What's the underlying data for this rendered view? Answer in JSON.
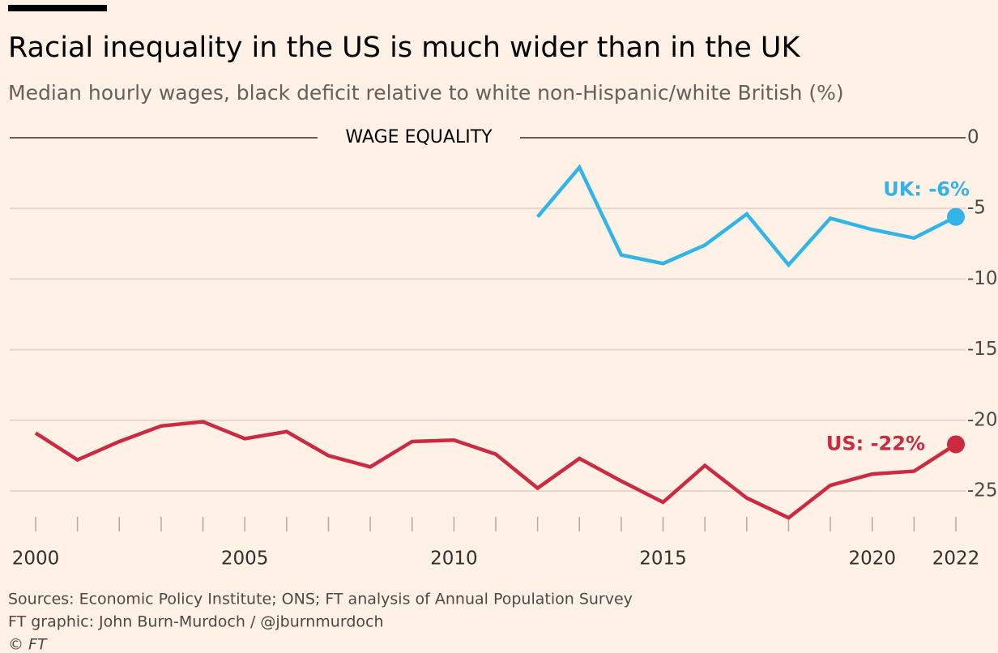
{
  "chart_data": {
    "type": "line",
    "title": "Racial inequality in the US is much wider than in the UK",
    "subtitle": "Median hourly wages, black deficit relative to white non-Hispanic/white British (%)",
    "annotation": "WAGE EQUALITY",
    "x": [
      2000,
      2001,
      2002,
      2003,
      2004,
      2005,
      2006,
      2007,
      2008,
      2009,
      2010,
      2011,
      2012,
      2013,
      2014,
      2015,
      2016,
      2017,
      2018,
      2019,
      2020,
      2021,
      2022
    ],
    "series": [
      {
        "name": "UK",
        "label": "UK: -6%",
        "color": "#33b4e6",
        "values": [
          null,
          null,
          null,
          null,
          null,
          null,
          null,
          null,
          null,
          null,
          null,
          null,
          -5.6,
          -2.1,
          -8.3,
          -8.9,
          -7.6,
          -5.4,
          -9.0,
          -5.7,
          -6.5,
          -7.1,
          -5.6
        ]
      },
      {
        "name": "US",
        "label": "US: -22%",
        "color": "#cc2a41",
        "values": [
          -20.9,
          -22.8,
          -21.5,
          -20.4,
          -20.1,
          -21.3,
          -20.8,
          -22.5,
          -23.3,
          -21.5,
          -21.4,
          -22.4,
          -24.8,
          -22.7,
          -24.3,
          -25.8,
          -23.2,
          -25.5,
          -26.9,
          -24.6,
          -23.8,
          -23.6,
          -21.7
        ]
      }
    ],
    "xlim": [
      2000,
      2022
    ],
    "xticks": [
      2000,
      2005,
      2010,
      2015,
      2020,
      2022
    ],
    "xminorticks": [
      2001,
      2002,
      2003,
      2004,
      2006,
      2007,
      2008,
      2009,
      2011,
      2012,
      2013,
      2014,
      2016,
      2017,
      2018,
      2019,
      2021
    ],
    "ylim": [
      -27.5,
      0
    ],
    "yticks": [
      0,
      -5,
      -10,
      -15,
      -20,
      -25
    ],
    "grid": true,
    "sources": [
      "Sources: Economic Policy Institute; ONS; FT analysis of Annual Population Survey",
      "FT graphic: John Burn-Murdoch / @jburnmurdoch",
      "© FT"
    ]
  }
}
